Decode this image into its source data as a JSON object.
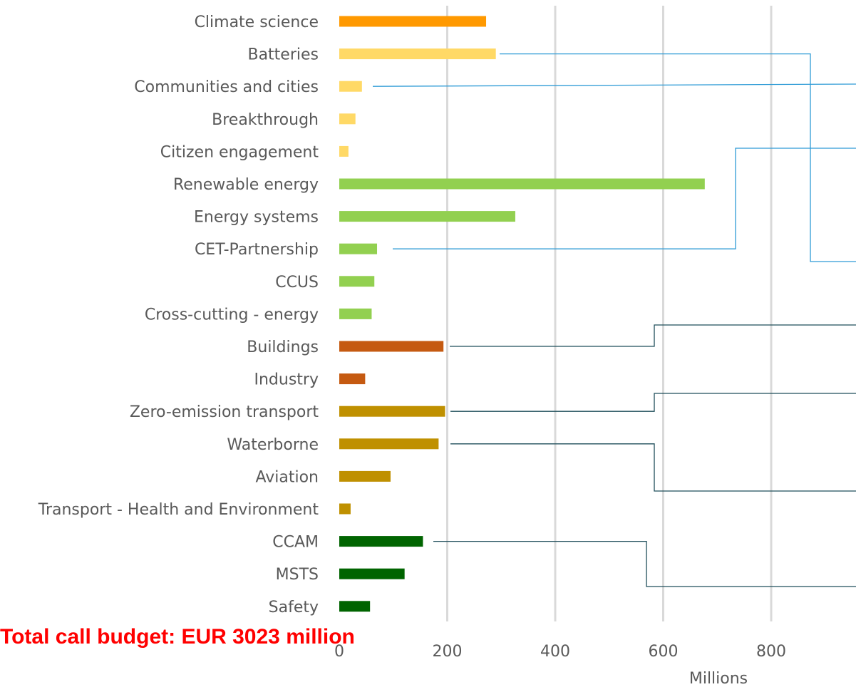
{
  "footer": {
    "total_budget_text": "Total call budget: EUR 3023 million"
  },
  "colors": {
    "footer_text": "#ff0000",
    "label_text": "#595959",
    "gridline": "#d9d9d9",
    "connector_blue": "#2e9bd6",
    "connector_dark": "#1f4e5a"
  },
  "chart_data": {
    "type": "bar",
    "orientation": "horizontal",
    "title": "",
    "xlabel": "",
    "ylabel": "",
    "unit_label": "Millions",
    "xlim": [
      0,
      1000
    ],
    "x_ticks": [
      0,
      200,
      400,
      600,
      800
    ],
    "x_tick_labels": [
      "0",
      "200",
      "400",
      "600",
      "800"
    ],
    "grid": "vertical gridlines",
    "legend": "none",
    "categories": [
      "Climate science",
      "Batteries",
      "Communities and cities",
      "Breakthrough",
      "Citizen engagement",
      "Renewable energy",
      "Energy systems",
      "CET-Partnership",
      "CCUS",
      "Cross-cutting - energy",
      "Buildings",
      "Industry",
      "Zero-emission transport",
      "Waterborne",
      "Aviation",
      "Transport - Health and Environment",
      "CCAM",
      "MSTS",
      "Safety"
    ],
    "values": [
      272,
      290,
      42,
      30,
      17,
      677,
      326,
      70,
      65,
      60,
      193,
      48,
      196,
      184,
      95,
      21,
      155,
      121,
      57
    ],
    "bar_colors": [
      "#ff9900",
      "#ffd966",
      "#ffd966",
      "#ffd966",
      "#ffd966",
      "#92d050",
      "#92d050",
      "#92d050",
      "#92d050",
      "#92d050",
      "#c55a11",
      "#c55a11",
      "#bf9000",
      "#bf9000",
      "#bf9000",
      "#bf9000",
      "#006400",
      "#006400",
      "#006400"
    ],
    "connector_lines": [
      {
        "from_category": "Batteries",
        "color": "connector_blue"
      },
      {
        "from_category": "Communities and cities",
        "color": "connector_blue"
      },
      {
        "from_category": "CET-Partnership",
        "color": "connector_blue"
      },
      {
        "from_category": "Buildings",
        "color": "connector_dark"
      },
      {
        "from_category": "Zero-emission transport",
        "color": "connector_dark"
      },
      {
        "from_category": "Waterborne",
        "color": "connector_dark"
      },
      {
        "from_category": "CCAM",
        "color": "connector_dark"
      }
    ]
  }
}
